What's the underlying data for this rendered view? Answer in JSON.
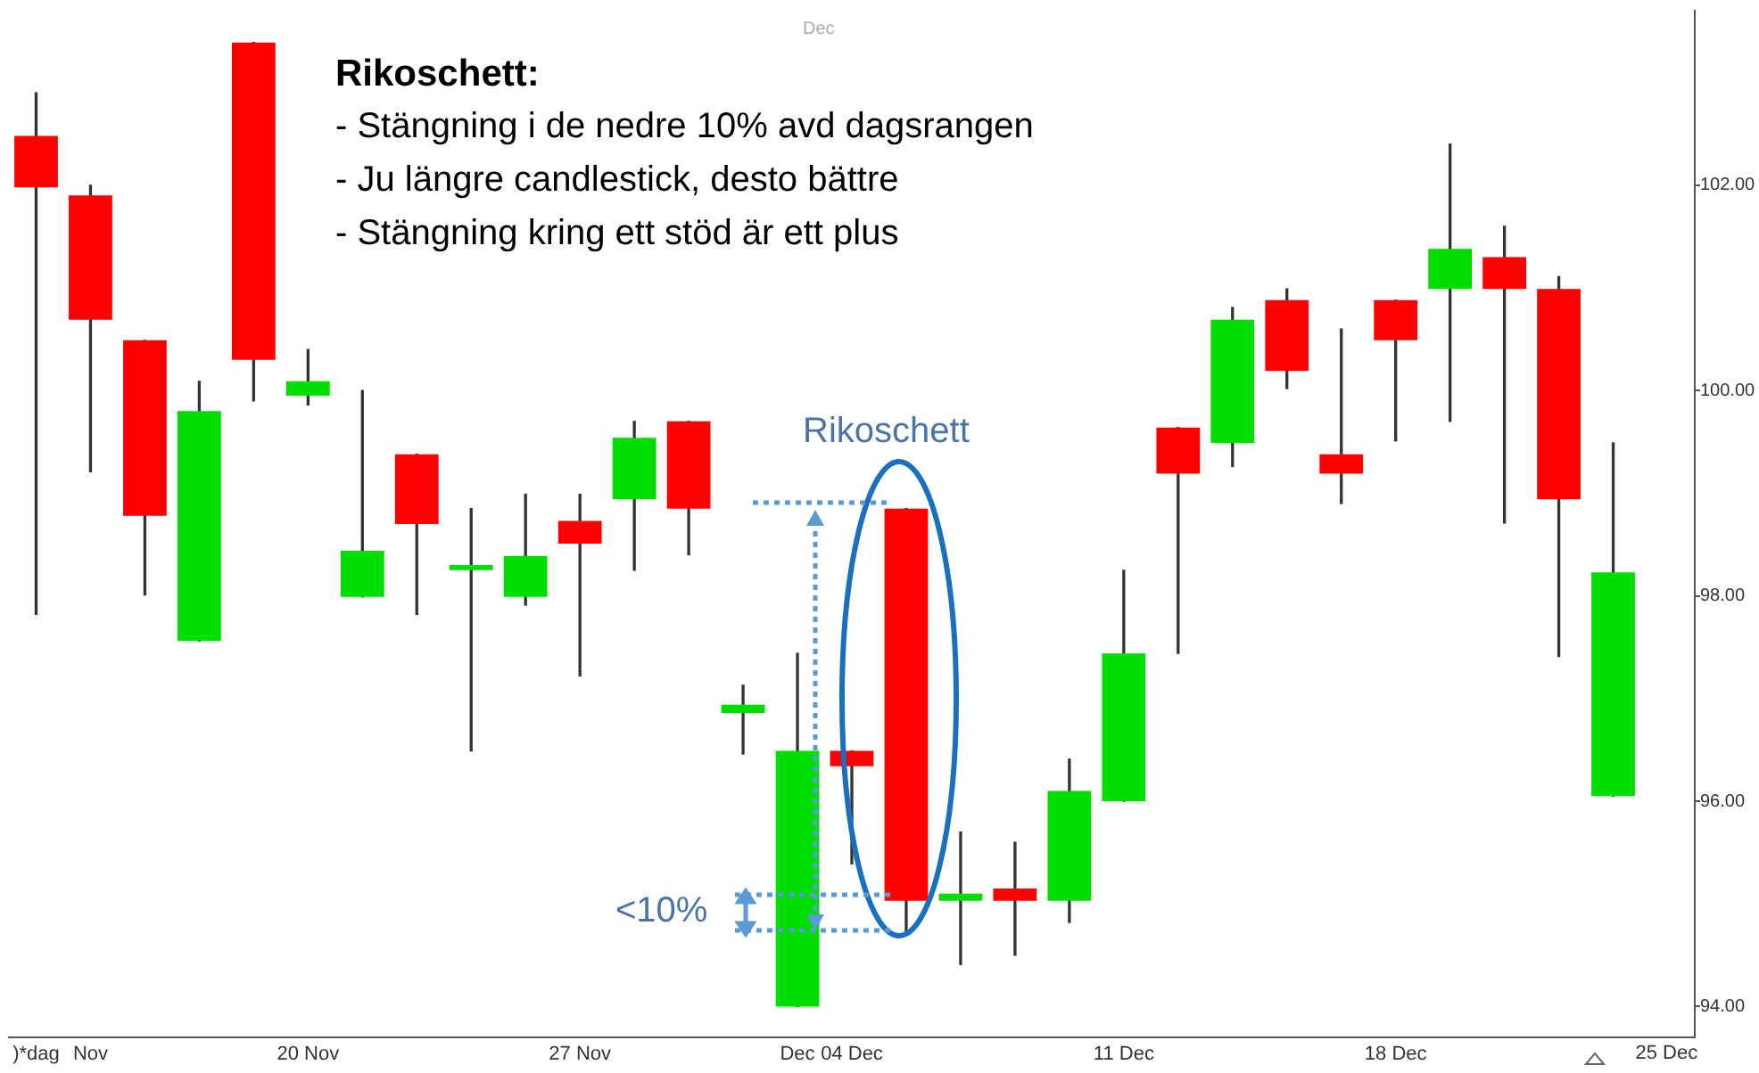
{
  "chart_data": {
    "type": "candlestick",
    "title": "Rikoschett:",
    "categories": [
      ")*dag",
      "Nov",
      null,
      null,
      null,
      "20 Nov",
      null,
      null,
      null,
      null,
      "27 Nov",
      null,
      null,
      null,
      "Dec",
      "04 Dec",
      null,
      null,
      null,
      null,
      "11 Dec",
      null,
      null,
      null,
      null,
      "18 Dec",
      null,
      null,
      null,
      null
    ],
    "ohlc": [
      [
        102.48,
        102.9,
        97.82,
        101.98
      ],
      [
        101.9,
        102.0,
        99.21,
        100.69
      ],
      [
        100.49,
        100.49,
        98.01,
        98.78
      ],
      [
        97.56,
        100.09,
        97.56,
        99.8
      ],
      [
        103.39,
        103.39,
        99.9,
        100.3
      ],
      [
        99.95,
        100.4,
        99.86,
        100.09
      ],
      [
        97.99,
        100.0,
        97.99,
        98.44
      ],
      [
        99.38,
        99.38,
        97.82,
        98.7
      ],
      [
        98.25,
        98.85,
        96.49,
        98.3
      ],
      [
        97.99,
        98.99,
        97.91,
        98.39
      ],
      [
        98.73,
        98.99,
        97.22,
        98.51
      ],
      [
        98.94,
        99.7,
        98.25,
        99.54
      ],
      [
        99.7,
        99.7,
        98.4,
        98.85
      ],
      [
        96.86,
        97.13,
        96.46,
        96.94
      ],
      [
        94.0,
        97.44,
        94.0,
        96.49
      ],
      [
        96.49,
        96.49,
        95.39,
        96.34
      ],
      [
        98.85,
        98.85,
        94.72,
        95.03
      ],
      [
        95.03,
        95.7,
        94.41,
        95.1
      ],
      [
        95.15,
        95.6,
        94.5,
        95.03
      ],
      [
        95.03,
        96.41,
        94.82,
        96.1
      ],
      [
        96.0,
        98.25,
        96.0,
        97.44
      ],
      [
        99.64,
        99.64,
        97.44,
        99.19
      ],
      [
        99.49,
        100.81,
        99.26,
        100.69
      ],
      [
        100.88,
        100.99,
        100.02,
        100.19
      ],
      [
        99.38,
        100.6,
        98.9,
        99.19
      ],
      [
        100.88,
        100.88,
        99.51,
        100.49
      ],
      [
        100.99,
        102.4,
        99.7,
        101.38
      ],
      [
        101.3,
        101.6,
        98.71,
        100.99
      ],
      [
        100.99,
        101.11,
        97.41,
        98.94
      ],
      [
        96.05,
        99.49,
        96.05,
        98.23
      ]
    ],
    "colors": [
      "#ff0000",
      "#ff0000",
      "#ff0000",
      "#00dd00",
      "#ff0000",
      "#00dd00",
      "#00dd00",
      "#ff0000",
      "#00dd00",
      "#00dd00",
      "#ff0000",
      "#00dd00",
      "#ff0000",
      "#00dd00",
      "#00dd00",
      "#ff0000",
      "#ff0000",
      "#00dd00",
      "#ff0000",
      "#00dd00",
      "#00dd00",
      "#ff0000",
      "#00dd00",
      "#ff0000",
      "#ff0000",
      "#ff0000",
      "#00dd00",
      "#ff0000",
      "#ff0000",
      "#00dd00"
    ],
    "ylim": [
      93.7,
      103.7
    ],
    "yticks": [
      {
        "value": 94,
        "label": "94.00"
      },
      {
        "value": 96,
        "label": "96.00"
      },
      {
        "value": 98,
        "label": "98.00"
      },
      {
        "value": 100,
        "label": "100.00"
      },
      {
        "value": 102,
        "label": "102.00"
      }
    ],
    "annotations": [
      "- Stängning i de nedre 10% avd dagsrangen",
      "- Ju längre candlestick, desto bättre",
      "- Stängning kring ett stöd är ett plus",
      "Rikoschett",
      "<10%",
      "25 Dec",
      "Dec"
    ]
  }
}
